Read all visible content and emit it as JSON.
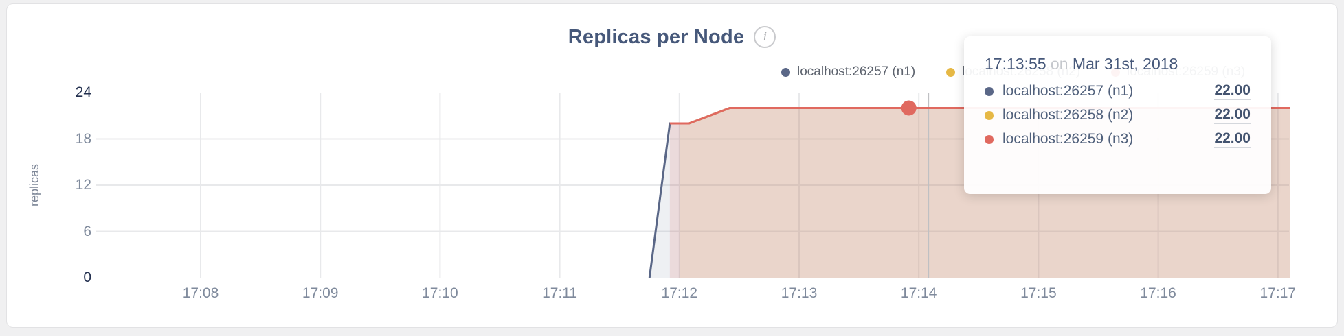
{
  "page": {
    "background": "#f0f0f1",
    "card_background": "#ffffff"
  },
  "header": {
    "title": "Replicas per Node",
    "info_icon": "i"
  },
  "legend": {
    "items": [
      {
        "label": "localhost:26257 (n1)",
        "color": "#5a6787"
      },
      {
        "label": "localhost:26258 (n2)",
        "color": "#e6b845"
      },
      {
        "label": "localhost:26259 (n3)",
        "color": "#e0695f"
      }
    ]
  },
  "tooltip": {
    "time": "17:13:55",
    "preposition": "on",
    "date": "Mar 31st, 2018",
    "rows": [
      {
        "name": "localhost:26257 (n1)",
        "value": "22.00",
        "color": "#5a6787"
      },
      {
        "name": "localhost:26258 (n2)",
        "value": "22.00",
        "color": "#e6b845"
      },
      {
        "name": "localhost:26259 (n3)",
        "value": "22.00",
        "color": "#e0695f"
      }
    ]
  },
  "hover": {
    "time_min": 13.9167,
    "value": 22,
    "crosshair_min": 14.08,
    "marker_series_index": 2,
    "crosshair_color": "#bfc0c3"
  },
  "chart_data": {
    "type": "area",
    "title": "Replicas per Node",
    "xlabel": "",
    "ylabel": "replicas",
    "x_unit": "minutes after 17:00 on Mar 31st, 2018",
    "xticks": [
      "17:08",
      "17:09",
      "17:10",
      "17:11",
      "17:12",
      "17:13",
      "17:14",
      "17:15",
      "17:16",
      "17:17"
    ],
    "yticks": [
      0,
      6,
      12,
      18,
      24
    ],
    "ylim": [
      0,
      24
    ],
    "grid": true,
    "gridline_color": "#e8e9eb",
    "legend_position": "top-right",
    "series": [
      {
        "name": "localhost:26257 (n1)",
        "color": "#5a6787",
        "fill_opacity": 0.1,
        "points": [
          [
            11.75,
            0
          ],
          [
            11.92,
            20
          ],
          [
            12.08,
            20
          ],
          [
            12.42,
            22
          ],
          [
            17.1,
            22
          ]
        ]
      },
      {
        "name": "localhost:26258 (n2)",
        "color": "#e6b845",
        "fill_opacity": 0.1,
        "points": [
          [
            12.0,
            20
          ],
          [
            12.08,
            20
          ],
          [
            12.42,
            22
          ],
          [
            17.1,
            22
          ]
        ]
      },
      {
        "name": "localhost:26259 (n3)",
        "color": "#e0695f",
        "fill_opacity": 0.16,
        "points": [
          [
            11.92,
            20
          ],
          [
            12.08,
            20
          ],
          [
            12.42,
            22
          ],
          [
            17.1,
            22
          ]
        ]
      }
    ]
  }
}
